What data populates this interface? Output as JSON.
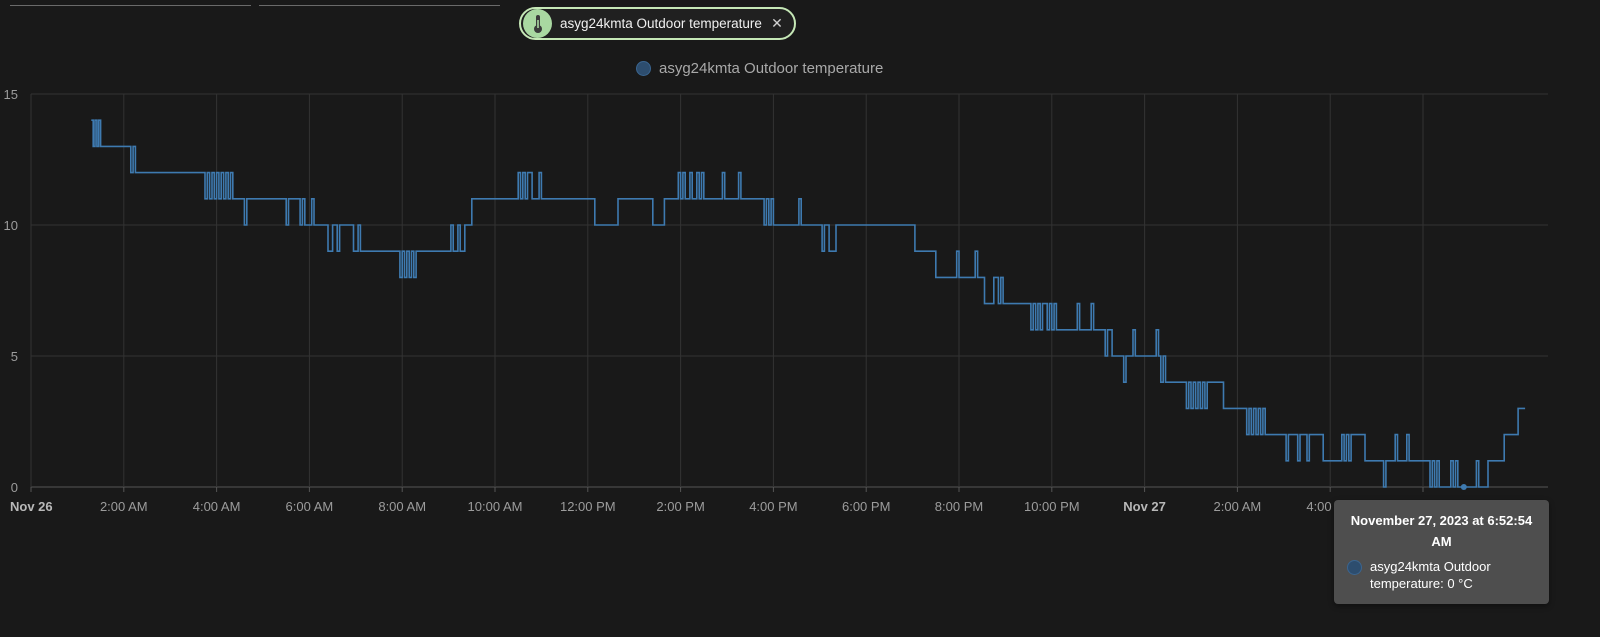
{
  "filter_chip": {
    "label": "asyg24kmta Outdoor temperature",
    "icon": "thermometer-icon",
    "close_icon": "close-icon"
  },
  "legend": {
    "series_name": "asyg24kmta Outdoor temperature"
  },
  "colors": {
    "background": "#191919",
    "series": "#3e7ab0",
    "chip_border": "#c5e7b6",
    "chip_icon_bg": "#a9d8a1",
    "tooltip_bg": "#4e4e4e"
  },
  "tooltip": {
    "title": "November 27, 2023 at 6:52:54 AM",
    "entity_name": "asyg24kmta Outdoor temperature",
    "value": "0 °C",
    "text": "asyg24kmta Outdoor temperature: 0 °C"
  },
  "chart_data": {
    "type": "line",
    "line_style": "step",
    "ylim": [
      0,
      15
    ],
    "y_ticks": [
      "0",
      "5",
      "10",
      "15"
    ],
    "x_range_hours": [
      0,
      31.1
    ],
    "x_ticks": [
      {
        "label": "Nov 26",
        "hour": 0,
        "bold": true
      },
      {
        "label": "2:00 AM",
        "hour": 2
      },
      {
        "label": "4:00 AM",
        "hour": 4
      },
      {
        "label": "6:00 AM",
        "hour": 6
      },
      {
        "label": "8:00 AM",
        "hour": 8
      },
      {
        "label": "10:00 AM",
        "hour": 10
      },
      {
        "label": "12:00 PM",
        "hour": 12
      },
      {
        "label": "2:00 PM",
        "hour": 14
      },
      {
        "label": "4:00 PM",
        "hour": 16
      },
      {
        "label": "6:00 PM",
        "hour": 18
      },
      {
        "label": "8:00 PM",
        "hour": 20
      },
      {
        "label": "10:00 PM",
        "hour": 22
      },
      {
        "label": "Nov 27",
        "hour": 24,
        "bold": true
      },
      {
        "label": "2:00 AM",
        "hour": 26
      },
      {
        "label": "4:00 AM",
        "hour": 28
      },
      {
        "label": "6:00 AM",
        "hour": 30
      }
    ],
    "grid": true,
    "legend_position": "top-center",
    "series": [
      {
        "name": "asyg24kmta Outdoor temperature",
        "unit": "°C",
        "points": [
          [
            1.3,
            14
          ],
          [
            1.34,
            13
          ],
          [
            1.38,
            14
          ],
          [
            1.42,
            13
          ],
          [
            1.46,
            14
          ],
          [
            1.5,
            13
          ],
          [
            2.15,
            12
          ],
          [
            2.2,
            13
          ],
          [
            2.25,
            12
          ],
          [
            3.75,
            11
          ],
          [
            3.8,
            12
          ],
          [
            3.85,
            11
          ],
          [
            3.9,
            12
          ],
          [
            3.95,
            11
          ],
          [
            4.0,
            12
          ],
          [
            4.05,
            11
          ],
          [
            4.1,
            12
          ],
          [
            4.15,
            11
          ],
          [
            4.2,
            12
          ],
          [
            4.25,
            11
          ],
          [
            4.3,
            12
          ],
          [
            4.35,
            11
          ],
          [
            4.6,
            10
          ],
          [
            4.65,
            11
          ],
          [
            5.5,
            10
          ],
          [
            5.55,
            11
          ],
          [
            5.8,
            10
          ],
          [
            5.85,
            11
          ],
          [
            5.9,
            10
          ],
          [
            6.0,
            10
          ],
          [
            6.05,
            11
          ],
          [
            6.1,
            10
          ],
          [
            6.35,
            10
          ],
          [
            6.4,
            9
          ],
          [
            6.5,
            10
          ],
          [
            6.6,
            9
          ],
          [
            6.65,
            10
          ],
          [
            6.9,
            10
          ],
          [
            6.95,
            9
          ],
          [
            7.05,
            10
          ],
          [
            7.1,
            9
          ],
          [
            9.0,
            9
          ],
          [
            7.1,
            9
          ],
          [
            7.95,
            8
          ],
          [
            8.0,
            9
          ],
          [
            8.05,
            8
          ],
          [
            8.1,
            9
          ],
          [
            8.15,
            8
          ],
          [
            8.2,
            9
          ],
          [
            8.25,
            8
          ],
          [
            8.3,
            9
          ],
          [
            9.0,
            9
          ],
          [
            9.05,
            10
          ],
          [
            9.1,
            9
          ],
          [
            9.2,
            10
          ],
          [
            9.25,
            9
          ],
          [
            9.35,
            10
          ],
          [
            9.5,
            11
          ],
          [
            10.45,
            11
          ],
          [
            10.5,
            12
          ],
          [
            10.55,
            11
          ],
          [
            10.6,
            12
          ],
          [
            10.65,
            11
          ],
          [
            10.7,
            12
          ],
          [
            10.8,
            11
          ],
          [
            10.95,
            12
          ],
          [
            11.0,
            11
          ],
          [
            12.1,
            11
          ],
          [
            12.15,
            10
          ],
          [
            12.6,
            10
          ],
          [
            12.65,
            11
          ],
          [
            13.35,
            11
          ],
          [
            13.4,
            10
          ],
          [
            13.6,
            10
          ],
          [
            13.65,
            11
          ],
          [
            13.9,
            11
          ],
          [
            13.95,
            12
          ],
          [
            14.0,
            11
          ],
          [
            14.05,
            12
          ],
          [
            14.1,
            11
          ],
          [
            14.2,
            12
          ],
          [
            14.25,
            11
          ],
          [
            14.35,
            12
          ],
          [
            14.4,
            11
          ],
          [
            14.45,
            12
          ],
          [
            14.5,
            11
          ],
          [
            14.85,
            11
          ],
          [
            14.9,
            12
          ],
          [
            14.95,
            11
          ],
          [
            15.2,
            11
          ],
          [
            15.25,
            12
          ],
          [
            15.3,
            11
          ],
          [
            15.75,
            11
          ],
          [
            15.8,
            10
          ],
          [
            15.85,
            11
          ],
          [
            15.9,
            10
          ],
          [
            15.95,
            11
          ],
          [
            16.0,
            10
          ],
          [
            16.5,
            10
          ],
          [
            16.55,
            11
          ],
          [
            16.6,
            10
          ],
          [
            17.0,
            10
          ],
          [
            17.05,
            9
          ],
          [
            17.1,
            10
          ],
          [
            17.2,
            9
          ],
          [
            17.3,
            9
          ],
          [
            17.35,
            10
          ],
          [
            19.0,
            10
          ],
          [
            19.05,
            9
          ],
          [
            19.45,
            9
          ],
          [
            19.5,
            8
          ],
          [
            19.6,
            8
          ],
          [
            19.9,
            8
          ],
          [
            19.95,
            9
          ],
          [
            20.0,
            8
          ],
          [
            20.3,
            8
          ],
          [
            20.35,
            9
          ],
          [
            20.4,
            8
          ],
          [
            20.5,
            8
          ],
          [
            20.55,
            7
          ],
          [
            20.7,
            7
          ],
          [
            20.75,
            8
          ],
          [
            20.85,
            7
          ],
          [
            20.9,
            8
          ],
          [
            20.95,
            7
          ],
          [
            21.5,
            7
          ],
          [
            21.55,
            6
          ],
          [
            21.6,
            7
          ],
          [
            21.65,
            6
          ],
          [
            21.7,
            7
          ],
          [
            21.75,
            6
          ],
          [
            21.8,
            7
          ],
          [
            21.9,
            6
          ],
          [
            21.95,
            7
          ],
          [
            22.0,
            6
          ],
          [
            22.05,
            7
          ],
          [
            22.1,
            6
          ],
          [
            22.5,
            6
          ],
          [
            22.55,
            7
          ],
          [
            22.6,
            6
          ],
          [
            22.8,
            6
          ],
          [
            22.85,
            7
          ],
          [
            22.9,
            6
          ],
          [
            23.1,
            6
          ],
          [
            23.15,
            5
          ],
          [
            23.2,
            6
          ],
          [
            23.3,
            5
          ],
          [
            23.5,
            5
          ],
          [
            23.55,
            4
          ],
          [
            23.6,
            5
          ],
          [
            23.7,
            5
          ],
          [
            23.75,
            6
          ],
          [
            23.8,
            5
          ],
          [
            24.2,
            5
          ],
          [
            24.25,
            6
          ],
          [
            24.3,
            5
          ],
          [
            24.35,
            4
          ],
          [
            24.4,
            5
          ],
          [
            24.45,
            4
          ],
          [
            24.85,
            4
          ],
          [
            24.9,
            3
          ],
          [
            24.95,
            4
          ],
          [
            25.0,
            3
          ],
          [
            25.05,
            4
          ],
          [
            25.1,
            3
          ],
          [
            25.15,
            4
          ],
          [
            25.2,
            3
          ],
          [
            25.25,
            4
          ],
          [
            25.3,
            3
          ],
          [
            25.35,
            4
          ],
          [
            25.65,
            4
          ],
          [
            25.7,
            3
          ],
          [
            26.15,
            3
          ],
          [
            26.2,
            2
          ],
          [
            26.25,
            3
          ],
          [
            26.3,
            2
          ],
          [
            26.35,
            3
          ],
          [
            26.4,
            2
          ],
          [
            26.45,
            3
          ],
          [
            26.5,
            2
          ],
          [
            26.55,
            3
          ],
          [
            26.6,
            2
          ],
          [
            27.0,
            2
          ],
          [
            27.05,
            1
          ],
          [
            27.1,
            2
          ],
          [
            27.25,
            2
          ],
          [
            27.3,
            1
          ],
          [
            27.35,
            2
          ],
          [
            27.45,
            2
          ],
          [
            27.5,
            1
          ],
          [
            27.55,
            2
          ],
          [
            27.8,
            2
          ],
          [
            27.85,
            1
          ],
          [
            28.2,
            1
          ],
          [
            28.25,
            2
          ],
          [
            28.3,
            1
          ],
          [
            28.35,
            2
          ],
          [
            28.4,
            1
          ],
          [
            28.45,
            2
          ],
          [
            28.7,
            2
          ],
          [
            28.75,
            1
          ],
          [
            29.1,
            1
          ],
          [
            29.15,
            0
          ],
          [
            29.2,
            1
          ],
          [
            29.35,
            1
          ],
          [
            29.4,
            2
          ],
          [
            29.45,
            1
          ],
          [
            29.6,
            1
          ],
          [
            29.65,
            2
          ],
          [
            29.7,
            1
          ],
          [
            30.1,
            1
          ],
          [
            30.15,
            0
          ],
          [
            30.2,
            1
          ],
          [
            30.25,
            0
          ],
          [
            30.3,
            1
          ],
          [
            30.35,
            0
          ],
          [
            30.55,
            0
          ],
          [
            30.6,
            1
          ],
          [
            30.65,
            0
          ],
          [
            30.7,
            1
          ],
          [
            30.75,
            0
          ],
          [
            31.1,
            0
          ],
          [
            31.15,
            1
          ],
          [
            31.2,
            0
          ],
          [
            31.3,
            0
          ],
          [
            31.4,
            1
          ],
          [
            31.7,
            1
          ],
          [
            31.75,
            2
          ],
          [
            32.0,
            2
          ],
          [
            32.05,
            3
          ],
          [
            32.2,
            3
          ]
        ]
      }
    ],
    "tooltip_point": {
      "hour": 30.88,
      "value": 0
    }
  }
}
